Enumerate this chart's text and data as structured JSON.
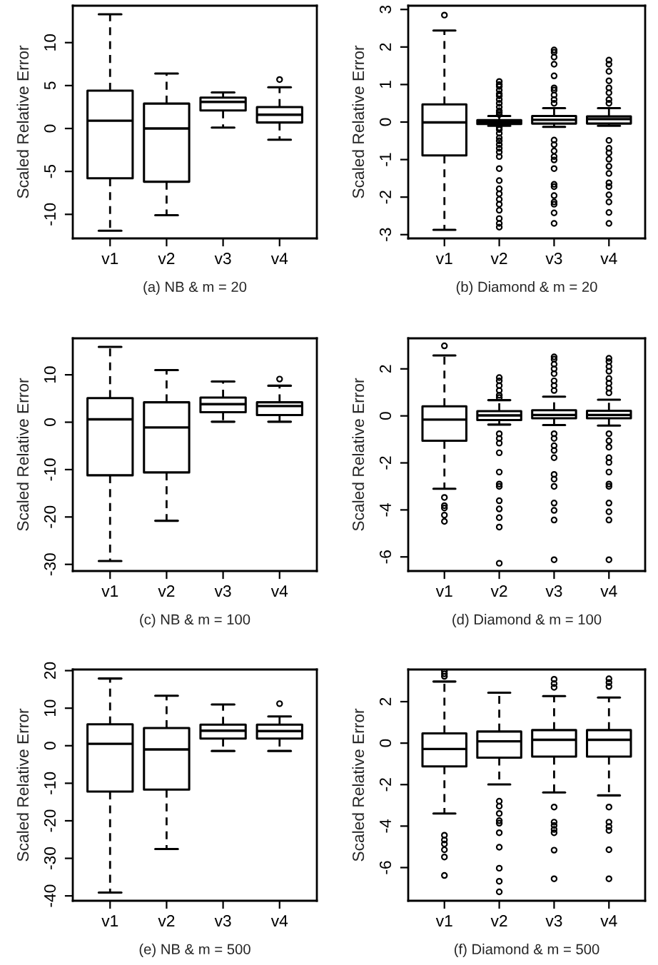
{
  "chart_data": [
    {
      "type": "box",
      "categories": [
        "v1",
        "v2",
        "v3",
        "v4"
      ],
      "xlabel": "(a) NB & m = 20",
      "ylabel": "Scaled Relative Error",
      "ylim": [
        -12.8,
        14.3
      ],
      "yticks": [
        -10,
        -5,
        0,
        5,
        10
      ],
      "boxes": [
        {
          "low": -11.9,
          "q1": -5.8,
          "median": 0.9,
          "q3": 4.4,
          "high": 13.3
        },
        {
          "low": -10.1,
          "q1": -6.2,
          "median": 0,
          "q3": 2.9,
          "high": 6.4
        },
        {
          "low": 0.1,
          "q1": 2.1,
          "median": 3.1,
          "q3": 3.6,
          "high": 4.2
        },
        {
          "low": -1.3,
          "q1": 0.7,
          "median": 1.6,
          "q3": 2.5,
          "high": 4.8,
          "outliers": [
            5.7
          ]
        }
      ]
    },
    {
      "type": "box",
      "categories": [
        "v1",
        "v2",
        "v3",
        "v4"
      ],
      "xlabel": "(b) Diamond & m = 20",
      "ylabel": "Scaled Relative Error",
      "ylim": [
        -3.1,
        3.1
      ],
      "yticks": [
        -3,
        -2,
        -1,
        0,
        1,
        2,
        3
      ],
      "boxes": [
        {
          "low": -2.87,
          "q1": -0.89,
          "median": -0.01,
          "q3": 0.47,
          "high": 2.44,
          "outliers": [
            2.85
          ]
        },
        {
          "low": -0.1,
          "q1": -0.05,
          "median": 0,
          "q3": 0.05,
          "high": 0.16,
          "outliers": [
            1.08,
            1.0,
            0.95,
            0.85,
            0.75,
            0.7,
            0.6,
            0.5,
            0.4,
            0.3,
            0.25,
            0.2,
            -0.15,
            -0.2,
            -0.3,
            -0.42,
            -0.5,
            -0.6,
            -0.7,
            -0.8,
            -0.92,
            -1.24,
            -1.56,
            -1.78,
            -1.91,
            -2.06,
            -2.19,
            -2.35,
            -2.57,
            -2.7,
            -2.8
          ]
        },
        {
          "low": -0.13,
          "q1": -0.04,
          "median": 0.06,
          "q3": 0.16,
          "high": 0.37,
          "outliers": [
            1.92,
            1.86,
            1.73,
            1.54,
            1.23,
            0.91,
            0.85,
            0.72,
            0.6,
            0.5,
            -0.48,
            -0.6,
            -0.77,
            -0.92,
            -1.01,
            -1.24,
            -1.66,
            -1.72,
            -1.96,
            -2.13,
            -2.19,
            -2.42,
            -2.7
          ]
        },
        {
          "low": -0.1,
          "q1": -0.04,
          "median": 0.08,
          "q3": 0.15,
          "high": 0.37,
          "outliers": [
            1.65,
            1.54,
            1.35,
            1.1,
            0.91,
            0.78,
            0.6,
            0.5,
            -0.49,
            -0.7,
            -0.82,
            -0.99,
            -1.18,
            -1.37,
            -1.62,
            -1.72,
            -1.94,
            -2.13,
            -2.41,
            -2.7
          ]
        }
      ]
    },
    {
      "type": "box",
      "categories": [
        "v1",
        "v2",
        "v3",
        "v4"
      ],
      "xlabel": "(c) NB & m = 100",
      "ylabel": "Scaled Relative Error",
      "ylim": [
        -31.4,
        17.7
      ],
      "yticks": [
        -30,
        -20,
        -10,
        0,
        10
      ],
      "boxes": [
        {
          "low": -29.3,
          "q1": -11.2,
          "median": 0.6,
          "q3": 5.1,
          "high": 15.9
        },
        {
          "low": -20.8,
          "q1": -10.6,
          "median": -1.1,
          "q3": 4.2,
          "high": 11.0
        },
        {
          "low": 0.1,
          "q1": 2.1,
          "median": 3.8,
          "q3": 5.2,
          "high": 8.6
        },
        {
          "low": 0.1,
          "q1": 1.5,
          "median": 3.4,
          "q3": 4.2,
          "high": 7.7,
          "outliers": [
            9.1
          ]
        }
      ]
    },
    {
      "type": "box",
      "categories": [
        "v1",
        "v2",
        "v3",
        "v4"
      ],
      "xlabel": "(d) Diamond & m = 100",
      "ylabel": "Scaled Relative Error",
      "ylim": [
        -6.6,
        3.3
      ],
      "yticks": [
        -6,
        -4,
        -2,
        0,
        2
      ],
      "boxes": [
        {
          "low": -3.1,
          "q1": -1.06,
          "median": -0.16,
          "q3": 0.41,
          "high": 2.57,
          "outliers": [
            2.98,
            -3.47,
            -3.82,
            -3.92,
            -4.22,
            -4.49
          ]
        },
        {
          "low": -0.37,
          "q1": -0.18,
          "median": 0.02,
          "q3": 0.2,
          "high": 0.67,
          "outliers": [
            1.63,
            1.49,
            1.29,
            1.08,
            0.88,
            0.78,
            -0.76,
            -0.96,
            -1.16,
            -1.57,
            -2.39,
            -2.9,
            -3.0,
            -3.61,
            -3.96,
            -4.33,
            -4.73,
            -6.27
          ]
        },
        {
          "low": -0.39,
          "q1": -0.1,
          "median": 0.04,
          "q3": 0.24,
          "high": 0.82,
          "outliers": [
            2.51,
            2.41,
            2.2,
            2.0,
            1.8,
            1.49,
            1.29,
            1.08,
            -0.76,
            -0.96,
            -1.27,
            -1.47,
            -1.78,
            -2.49,
            -2.69,
            -3.0,
            -3.71,
            -4.02,
            -4.43,
            -6.12
          ]
        },
        {
          "low": -0.41,
          "q1": -0.1,
          "median": 0.04,
          "q3": 0.22,
          "high": 0.69,
          "outliers": [
            2.45,
            2.31,
            2.1,
            1.9,
            1.59,
            1.39,
            1.18,
            0.98,
            -0.76,
            -1.06,
            -1.33,
            -1.78,
            -1.98,
            -2.39,
            -2.9,
            -3.0,
            -3.71,
            -4.08,
            -4.43,
            -6.12
          ]
        }
      ]
    },
    {
      "type": "box",
      "categories": [
        "v1",
        "v2",
        "v3",
        "v4"
      ],
      "xlabel": "(e) NB & m = 500",
      "ylabel": "Scaled Relative Error",
      "ylim": [
        -41.3,
        20.3
      ],
      "yticks": [
        -40,
        -30,
        -20,
        -10,
        0,
        10,
        20
      ],
      "boxes": [
        {
          "low": -39.1,
          "q1": -12.2,
          "median": 0.5,
          "q3": 5.7,
          "high": 17.9
        },
        {
          "low": -27.5,
          "q1": -11.7,
          "median": -1.0,
          "q3": 4.7,
          "high": 13.3
        },
        {
          "low": -1.4,
          "q1": 1.9,
          "median": 4.0,
          "q3": 5.6,
          "high": 11.0
        },
        {
          "low": -1.4,
          "q1": 1.9,
          "median": 3.9,
          "q3": 5.6,
          "high": 7.8,
          "outliers": [
            11.2
          ]
        }
      ]
    },
    {
      "type": "box",
      "categories": [
        "v1",
        "v2",
        "v3",
        "v4"
      ],
      "xlabel": "(f) Diamond & m = 500",
      "ylabel": "Scaled Relative Error",
      "ylim": [
        -7.6,
        3.55
      ],
      "yticks": [
        -6,
        -4,
        -2,
        0,
        2
      ],
      "boxes": [
        {
          "low": -3.39,
          "q1": -1.12,
          "median": -0.28,
          "q3": 0.47,
          "high": 2.97,
          "outliers": [
            3.46,
            3.34,
            3.22,
            -4.44,
            -4.67,
            -4.86,
            -5.14,
            -5.49,
            -6.38
          ]
        },
        {
          "low": -1.99,
          "q1": -0.7,
          "median": 0.09,
          "q3": 0.56,
          "high": 2.43,
          "outliers": [
            -2.8,
            -3.04,
            -3.39,
            -3.74,
            -3.86,
            -4.32,
            -5.02,
            -6.03,
            -6.66,
            -7.17
          ]
        },
        {
          "low": -2.38,
          "q1": -0.65,
          "median": 0.16,
          "q3": 0.63,
          "high": 2.27,
          "outliers": [
            3.08,
            2.87,
            2.69,
            -3.08,
            -3.81,
            -3.97,
            -4.16,
            -4.32,
            -5.16,
            -6.54
          ]
        },
        {
          "low": -2.52,
          "q1": -0.65,
          "median": 0.16,
          "q3": 0.63,
          "high": 2.2,
          "outliers": [
            3.1,
            2.92,
            2.73,
            -3.08,
            -3.81,
            -4.02,
            -4.21,
            -5.14,
            -6.54
          ]
        }
      ]
    }
  ]
}
